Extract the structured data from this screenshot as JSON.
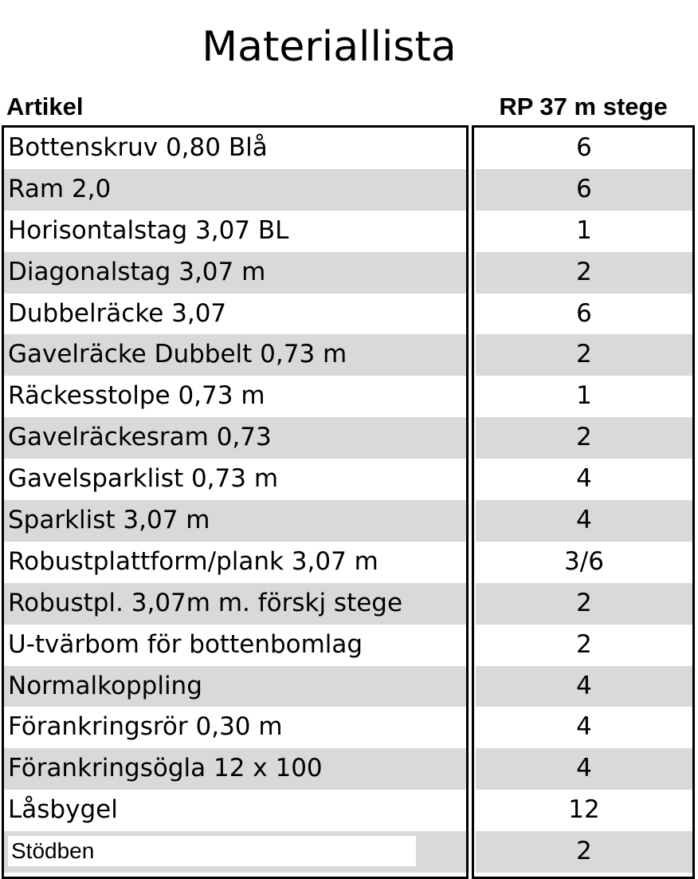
{
  "title": "Materiallista",
  "headers": {
    "article": "Artikel",
    "quantity": "RP 37 m stege"
  },
  "rows": [
    {
      "article": "Bottenskruv 0,80 Blå",
      "qty": "6"
    },
    {
      "article": "Ram 2,0",
      "qty": "6"
    },
    {
      "article": "Horisontalstag 3,07 BL",
      "qty": "1"
    },
    {
      "article": "Diagonalstag 3,07 m",
      "qty": "2"
    },
    {
      "article": "Dubbelräcke 3,07",
      "qty": "6"
    },
    {
      "article": "Gavelräcke Dubbelt 0,73 m",
      "qty": "2"
    },
    {
      "article": "Räckesstolpe 0,73 m",
      "qty": "1"
    },
    {
      "article": "Gavelräckesram 0,73",
      "qty": "2"
    },
    {
      "article": "Gavelsparklist 0,73 m",
      "qty": "4"
    },
    {
      "article": "Sparklist 3,07 m",
      "qty": "4"
    },
    {
      "article": "Robustplattform/plank 3,07 m",
      "qty": "3/6"
    },
    {
      "article": "Robustpl. 3,07m m. förskj stege",
      "qty": "2"
    },
    {
      "article": "U-tvärbom för bottenbomlag",
      "qty": "2"
    },
    {
      "article": "Normalkoppling",
      "qty": "4"
    },
    {
      "article": "Förankringsrör 0,30 m",
      "qty": "4"
    },
    {
      "article": "Förankringsögla 12 x 100",
      "qty": "4"
    },
    {
      "article": "Låsbygel",
      "qty": "12"
    },
    {
      "article": "Stödben",
      "qty": "2"
    }
  ],
  "colors": {
    "shade": "#d9d9d9",
    "border": "#000000"
  }
}
